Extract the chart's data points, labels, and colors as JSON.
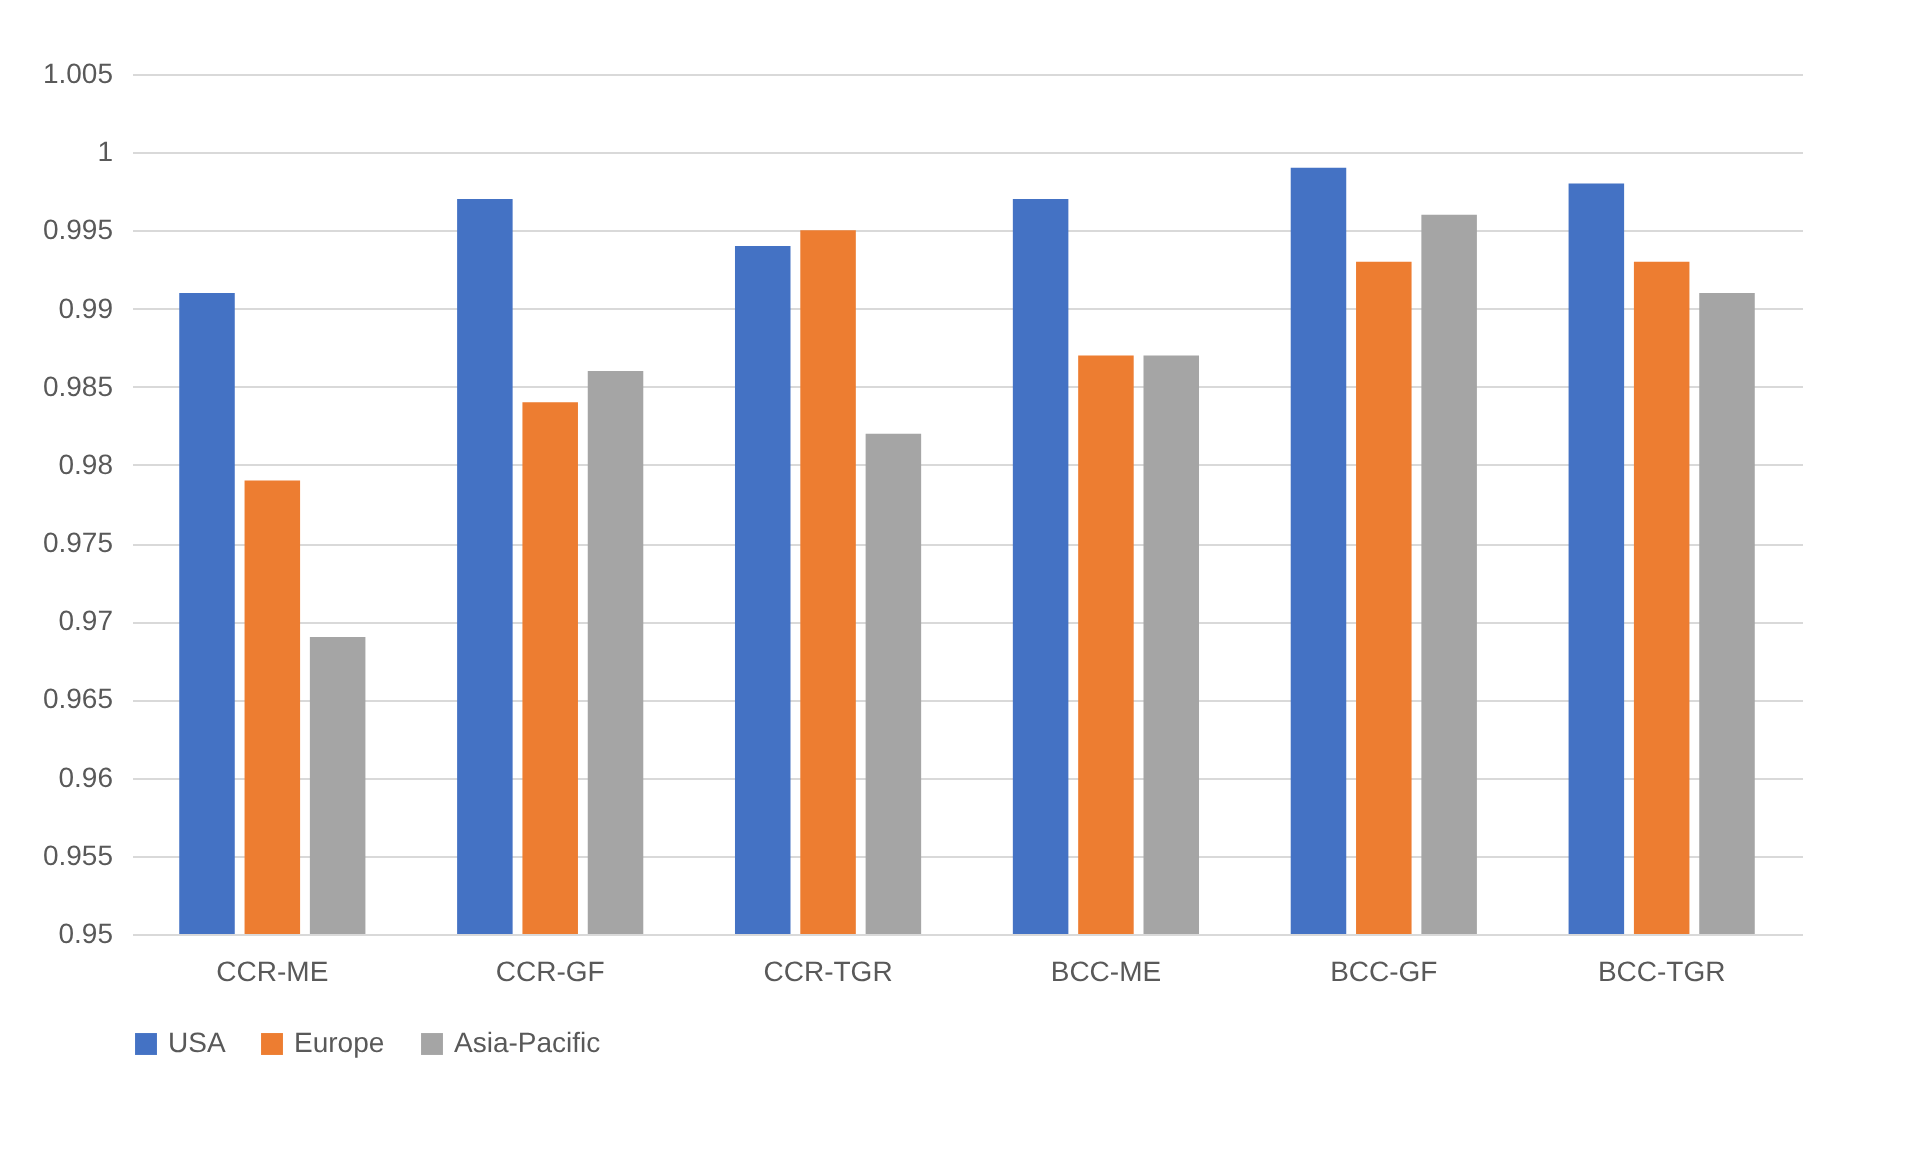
{
  "chart_data": {
    "type": "bar",
    "categories": [
      "CCR-ME",
      "CCR-GF",
      "CCR-TGR",
      "BCC-ME",
      "BCC-GF",
      "BCC-TGR"
    ],
    "series": [
      {
        "name": "USA",
        "color": "#4472c4",
        "values": [
          0.991,
          0.997,
          0.994,
          0.997,
          0.999,
          0.998
        ]
      },
      {
        "name": "Europe",
        "color": "#ed7d31",
        "values": [
          0.979,
          0.984,
          0.995,
          0.987,
          0.993,
          0.993
        ]
      },
      {
        "name": "Asia-Pacific",
        "color": "#a5a5a5",
        "values": [
          0.969,
          0.986,
          0.982,
          0.987,
          0.996,
          0.991
        ]
      }
    ],
    "ylim": [
      0.95,
      1.005
    ],
    "yticks": [
      0.95,
      0.955,
      0.96,
      0.965,
      0.97,
      0.975,
      0.98,
      0.985,
      0.99,
      0.995,
      1,
      1.005
    ],
    "grid": "y",
    "legend": "bottom"
  }
}
